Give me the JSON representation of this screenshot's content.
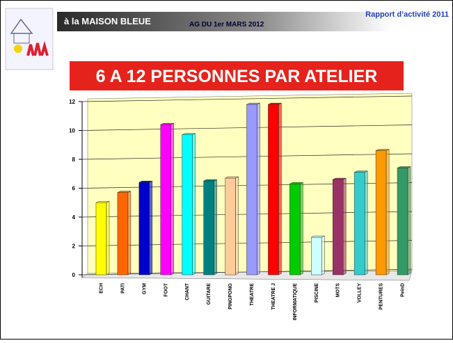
{
  "header": {
    "place": "à la MAISON BLEUE",
    "meeting": "AG DU 1er MARS 2012",
    "report": "Rapport d’activité 2011"
  },
  "chart_data": {
    "type": "bar",
    "title": "6 A 12 PERSONNES PAR ATELIER",
    "categories": [
      "ECH",
      "PATI",
      "GYM",
      "FOOT",
      "CHANT",
      "GUITARE",
      "PINGPONG",
      "THEATRE",
      "THEATRE J",
      "INFORMATIQUE",
      "PISCINE",
      "MOTS",
      "VOLLEY",
      "PENTURES",
      "PeinD"
    ],
    "values": [
      5.0,
      5.7,
      6.4,
      10.4,
      9.7,
      6.5,
      6.7,
      11.8,
      11.8,
      6.3,
      2.6,
      6.6,
      7.1,
      8.6,
      7.4
    ],
    "colors": [
      "#ffff00",
      "#ff6600",
      "#0000cc",
      "#ff00ff",
      "#00ffff",
      "#008080",
      "#ffcc99",
      "#9999ff",
      "#ff0000",
      "#00cc00",
      "#ccffff",
      "#993366",
      "#33cccc",
      "#ff9900",
      "#339966"
    ],
    "ylim": [
      0,
      12
    ],
    "yticks": [
      0,
      2,
      4,
      6,
      8,
      10,
      12
    ],
    "grid": true
  }
}
